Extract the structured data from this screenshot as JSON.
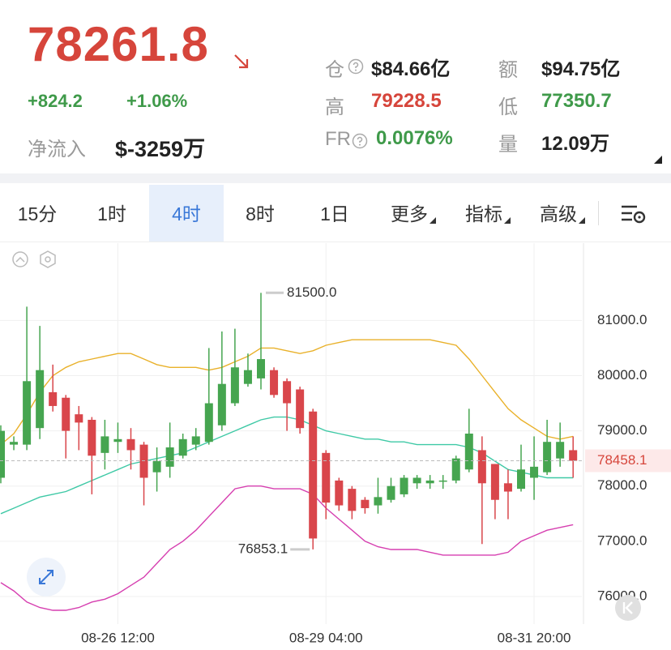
{
  "header": {
    "price": "78261.8",
    "change": "+824.2",
    "change_pct": "+1.06%",
    "net_inflow_label": "净流入",
    "net_inflow": "$-3259万",
    "stats": [
      {
        "label": "仓",
        "value": "$84.66亿",
        "color": "#222222"
      },
      {
        "label": "额",
        "value": "$94.75亿",
        "color": "#222222"
      },
      {
        "label": "高",
        "value": "79228.5",
        "color": "#d6453b"
      },
      {
        "label": "低",
        "value": "77350.7",
        "color": "#3f9a4a"
      },
      {
        "label": "FR",
        "value": "0.0076%",
        "color": "#3f9a4a"
      },
      {
        "label": "量",
        "value": "12.09万",
        "color": "#222222"
      }
    ]
  },
  "tabs": [
    "15分",
    "1时",
    "4时",
    "8时",
    "1日",
    "更多",
    "指标",
    "高级"
  ],
  "active_tab": 2,
  "chart_data": {
    "type": "candlestick",
    "categories": [
      null,
      null,
      null,
      null,
      null,
      null,
      null,
      null,
      null,
      "08-26 12:00",
      null,
      null,
      null,
      null,
      null,
      null,
      null,
      null,
      null,
      null,
      null,
      null,
      null,
      null,
      null,
      "08-29 04:00",
      null,
      null,
      null,
      null,
      null,
      null,
      null,
      null,
      null,
      null,
      null,
      null,
      null,
      null,
      null,
      "08-31 20:00",
      null,
      null,
      null
    ],
    "open": [
      78150,
      78750,
      78750,
      79050,
      79700,
      79600,
      79300,
      79200,
      78600,
      78800,
      78850,
      78750,
      78250,
      78350,
      78550,
      78750,
      78800,
      79100,
      79500,
      79850,
      79950,
      80100,
      79900,
      79750,
      79350,
      78600,
      78100,
      77950,
      77750,
      77650,
      77750,
      77850,
      78050,
      78050,
      78080,
      78100,
      78300,
      78650,
      78400,
      78050,
      77950,
      78150,
      78250,
      78500,
      78650
    ],
    "high": [
      79100,
      78900,
      81250,
      80900,
      80200,
      79650,
      79450,
      79250,
      79200,
      79150,
      79050,
      78800,
      78700,
      79150,
      78950,
      79050,
      80500,
      80800,
      80850,
      80400,
      81500,
      80150,
      79950,
      79800,
      79400,
      78650,
      78150,
      78000,
      77800,
      78150,
      78150,
      78200,
      78200,
      78200,
      78200,
      78550,
      79400,
      78900,
      78400,
      78300,
      78750,
      78900,
      79200,
      79150,
      78900
    ],
    "low": [
      78050,
      78650,
      78650,
      78850,
      79350,
      78500,
      78650,
      77850,
      78300,
      78600,
      78300,
      77650,
      77900,
      78150,
      78500,
      78650,
      78750,
      79000,
      79450,
      79800,
      79750,
      79600,
      79000,
      78950,
      76853.1,
      77400,
      77550,
      77400,
      77500,
      77500,
      77700,
      77800,
      77950,
      77950,
      77950,
      78050,
      78250,
      76950,
      77400,
      77400,
      77900,
      77750,
      78200,
      78350,
      78150
    ],
    "close": [
      79000,
      78800,
      79900,
      80100,
      79450,
      79000,
      79150,
      78550,
      78900,
      78850,
      78650,
      78150,
      78450,
      78700,
      78850,
      78900,
      79500,
      79850,
      80150,
      80100,
      80300,
      79650,
      79500,
      79050,
      77050,
      77700,
      77650,
      77550,
      77600,
      77800,
      78000,
      78150,
      78150,
      78100,
      78100,
      78500,
      78950,
      78050,
      77750,
      77900,
      78300,
      78350,
      78800,
      78800,
      78458.1
    ],
    "up_color": "#46a550",
    "down_color": "#d9464b",
    "overlays": [
      {
        "color": "#e9b12a",
        "values": [
          78750,
          78950,
          79300,
          79700,
          80000,
          80150,
          80250,
          80300,
          80350,
          80400,
          80400,
          80300,
          80200,
          80150,
          80150,
          80150,
          80100,
          80150,
          80250,
          80350,
          80500,
          80500,
          80450,
          80400,
          80450,
          80550,
          80600,
          80650,
          80650,
          80650,
          80650,
          80650,
          80650,
          80650,
          80600,
          80550,
          80300,
          80000,
          79700,
          79400,
          79200,
          79050,
          78900,
          78850,
          78900
        ]
      },
      {
        "color": "#3fc9a6",
        "values": [
          77500,
          77600,
          77700,
          77800,
          77850,
          77900,
          78000,
          78100,
          78200,
          78300,
          78400,
          78450,
          78500,
          78550,
          78600,
          78700,
          78800,
          78900,
          79000,
          79100,
          79200,
          79250,
          79250,
          79200,
          79100,
          79000,
          78950,
          78900,
          78850,
          78850,
          78800,
          78800,
          78750,
          78750,
          78750,
          78750,
          78700,
          78600,
          78450,
          78300,
          78250,
          78200,
          78150,
          78150,
          78150
        ]
      },
      {
        "color": "#d63fb0",
        "values": [
          76250,
          76100,
          75900,
          75800,
          75750,
          75750,
          75800,
          75900,
          75950,
          76050,
          76200,
          76350,
          76600,
          76850,
          77000,
          77200,
          77450,
          77700,
          77950,
          78000,
          78000,
          77950,
          77950,
          77950,
          77850,
          77600,
          77400,
          77200,
          77000,
          76900,
          76850,
          76850,
          76850,
          76800,
          76750,
          76750,
          76750,
          76750,
          76750,
          76800,
          77000,
          77100,
          77200,
          77250,
          77300
        ]
      }
    ],
    "ylim": [
      75500,
      82400
    ],
    "yticks": [
      {
        "value": 76000,
        "label": "76000.0"
      },
      {
        "value": 77000,
        "label": "77000.0"
      },
      {
        "value": 78000,
        "label": "78000.0"
      },
      {
        "value": 79000,
        "label": "79000.0"
      },
      {
        "value": 80000,
        "label": "80000.0"
      },
      {
        "value": 81000,
        "label": "81000.0"
      }
    ],
    "grid": true,
    "annotations": [
      {
        "index": 20,
        "value": 81500,
        "label": "81500.0"
      },
      {
        "index": 24,
        "value": 76853.1,
        "label": "76853.1"
      }
    ],
    "last_price": {
      "value": 78458.1,
      "label": "78458.1"
    }
  }
}
